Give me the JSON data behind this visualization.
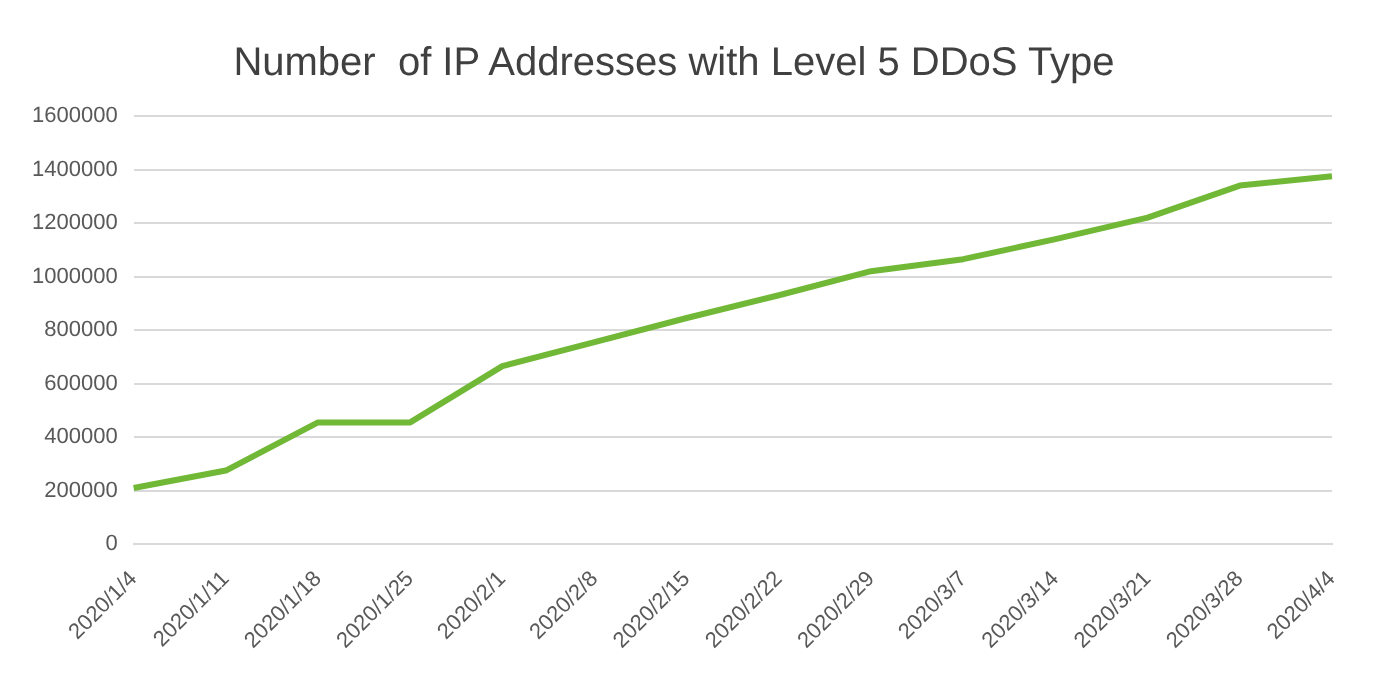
{
  "chart_data": {
    "type": "line",
    "title": "Number  of IP Addresses with Level 5 DDoS Type",
    "categories": [
      "2020/1/4",
      "2020/1/11",
      "2020/1/18",
      "2020/1/25",
      "2020/2/1",
      "2020/2/8",
      "2020/2/15",
      "2020/2/22",
      "2020/2/29",
      "2020/3/7",
      "2020/3/14",
      "2020/3/21",
      "2020/3/28",
      "2020/4/4"
    ],
    "series": [
      {
        "color": "#70b836",
        "values": [
          210000,
          275000,
          455000,
          455000,
          665000,
          755000,
          845000,
          930000,
          1020000,
          1065000,
          1140000,
          1220000,
          1340000,
          1375000
        ]
      }
    ],
    "ylim": [
      0,
      1600000
    ],
    "yticks": [
      0,
      200000,
      400000,
      600000,
      800000,
      1000000,
      1200000,
      1400000,
      1600000
    ],
    "grid": "y",
    "legend": false,
    "marker": "none",
    "line_style": "solid"
  }
}
